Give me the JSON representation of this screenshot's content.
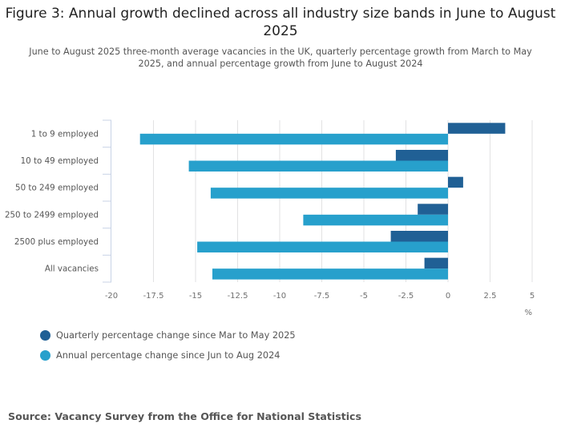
{
  "chart_data": {
    "type": "bar",
    "orientation": "horizontal",
    "title": "Figure 3: Annual growth declined across all industry size bands in June to August 2025",
    "subtitle": "June to August 2025 three-month average vacancies in the UK, quarterly percentage growth from March to May 2025, and annual percentage growth from June to August 2024",
    "categories": [
      "1 to 9 employed",
      "10 to 49 employed",
      "50 to 249 employed",
      "250 to 2499 employed",
      "2500 plus employed",
      "All vacancies"
    ],
    "series": [
      {
        "name": "Quarterly percentage change since Mar to May 2025",
        "color": "#206095",
        "values": [
          3.4,
          -3.1,
          0.9,
          -1.8,
          -3.4,
          -1.4
        ]
      },
      {
        "name": "Annual percentage change since Jun to Aug 2024",
        "color": "#27a0cc",
        "values": [
          -18.3,
          -15.4,
          -14.1,
          -8.6,
          -14.9,
          -14.0
        ]
      }
    ],
    "xlabel": "%",
    "ylabel": "",
    "xlim": [
      -20,
      5
    ],
    "xticks": [
      -20,
      -17.5,
      -15,
      -12.5,
      -10,
      -7.5,
      -5,
      -2.5,
      0,
      2.5,
      5
    ],
    "xtick_labels": [
      "-20",
      "-17.5",
      "-15",
      "-12.5",
      "-10",
      "-7.5",
      "-5",
      "-2.5",
      "0",
      "2.5",
      "5"
    ],
    "grid": true,
    "legend_position": "bottom-left",
    "source": "Source: Vacancy Survey from the Office for National Statistics"
  }
}
